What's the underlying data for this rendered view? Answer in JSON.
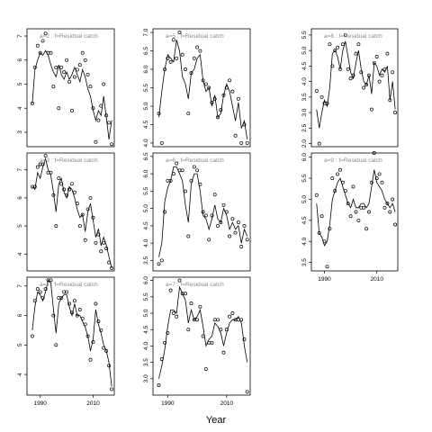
{
  "figure": {
    "xlabel": "Year"
  },
  "chart_data": [
    {
      "type": "line",
      "title": "a=2 : f=Residual catch",
      "xlim": [
        1985,
        2018
      ],
      "ylim": [
        2.4,
        7.3
      ],
      "yticks": [
        3,
        4,
        5,
        6,
        7
      ],
      "xticks": [],
      "x": [
        1987,
        1988,
        1989,
        1990,
        1991,
        1992,
        1993,
        1994,
        1995,
        1996,
        1997,
        1998,
        1999,
        2000,
        2001,
        2002,
        2003,
        2004,
        2005,
        2006,
        2007,
        2008,
        2009,
        2010,
        2011,
        2012,
        2013,
        2014,
        2015,
        2016,
        2017
      ],
      "series": [
        {
          "kind": "points",
          "values": [
            4.2,
            5.7,
            6.6,
            6.3,
            6.8,
            7.1,
            6.3,
            6.3,
            4.9,
            5.7,
            4.0,
            5.7,
            5.5,
            6.0,
            5.1,
            3.9,
            5.3,
            5.6,
            5.8,
            6.3,
            6.0,
            5.4,
            4.9,
            4.0,
            2.6,
            3.5,
            4.1,
            5.0,
            3.7,
            3.4,
            2.5
          ]
        },
        {
          "kind": "line",
          "values": [
            4.2,
            5.6,
            6.0,
            6.3,
            6.2,
            6.4,
            6.2,
            5.8,
            5.5,
            5.3,
            5.8,
            5.4,
            5.2,
            5.5,
            5.2,
            5.4,
            5.7,
            5.4,
            5.1,
            5.6,
            5.3,
            4.8,
            4.5,
            3.9,
            3.5,
            3.9,
            3.7,
            4.5,
            3.6,
            2.7,
            3.5
          ]
        }
      ]
    },
    {
      "type": "line",
      "title": "a=5 : f=Residual catch",
      "xlim": [
        1985,
        2018
      ],
      "ylim": [
        3.9,
        7.1
      ],
      "yticks": [
        4.0,
        4.5,
        5.0,
        5.5,
        6.0,
        6.5,
        7.0
      ],
      "xticks": [],
      "x": [
        1987,
        1988,
        1989,
        1990,
        1991,
        1992,
        1993,
        1994,
        1995,
        1996,
        1997,
        1998,
        1999,
        2000,
        2001,
        2002,
        2003,
        2004,
        2005,
        2006,
        2007,
        2008,
        2009,
        2010,
        2011,
        2012,
        2013,
        2014,
        2015,
        2016,
        2017
      ],
      "series": [
        {
          "kind": "points",
          "values": [
            4.8,
            4.0,
            6.0,
            6.3,
            6.2,
            6.8,
            6.3,
            7.0,
            6.4,
            6.0,
            4.8,
            5.9,
            6.3,
            6.6,
            6.5,
            5.7,
            5.6,
            5.5,
            5.1,
            5.2,
            4.7,
            4.9,
            5.3,
            5.5,
            5.7,
            5.4,
            4.2,
            5.2,
            4.0,
            4.5,
            4.0
          ]
        },
        {
          "kind": "line",
          "values": [
            4.7,
            5.4,
            6.0,
            6.4,
            6.3,
            6.2,
            6.8,
            6.5,
            5.8,
            5.6,
            5.2,
            5.9,
            6.0,
            6.3,
            6.4,
            5.7,
            5.4,
            5.5,
            5.0,
            5.3,
            4.7,
            4.8,
            5.3,
            5.6,
            5.4,
            5.0,
            4.6,
            5.1,
            4.4,
            4.6,
            4.1
          ]
        }
      ]
    },
    {
      "type": "line",
      "title": "a=8 : f=Residual catch",
      "xlim": [
        1985,
        2018
      ],
      "ylim": [
        1.9,
        5.7
      ],
      "yticks": [
        2.0,
        2.5,
        3.0,
        3.5,
        4.0,
        4.5,
        5.0,
        5.5
      ],
      "xticks": [],
      "x": [
        1987,
        1988,
        1989,
        1990,
        1991,
        1992,
        1993,
        1994,
        1995,
        1996,
        1997,
        1998,
        1999,
        2000,
        2001,
        2002,
        2003,
        2004,
        2005,
        2006,
        2007,
        2008,
        2009,
        2010,
        2011,
        2012,
        2013,
        2014,
        2015,
        2016,
        2017
      ],
      "series": [
        {
          "kind": "points",
          "values": [
            3.7,
            2.0,
            3.5,
            3.3,
            3.3,
            5.2,
            4.5,
            5.0,
            5.1,
            4.4,
            5.2,
            5.5,
            4.4,
            4.1,
            4.2,
            4.9,
            5.2,
            4.3,
            3.8,
            3.9,
            4.2,
            3.1,
            4.6,
            4.8,
            4.0,
            4.2,
            4.4,
            4.9,
            3.4,
            4.3,
            3.0
          ]
        },
        {
          "kind": "line",
          "values": [
            3.1,
            2.5,
            3.0,
            3.4,
            3.2,
            3.8,
            4.9,
            5.0,
            4.8,
            4.4,
            5.0,
            5.3,
            4.8,
            4.3,
            4.1,
            4.6,
            5.0,
            4.4,
            4.0,
            3.9,
            4.2,
            3.6,
            4.6,
            4.5,
            4.2,
            4.4,
            4.3,
            4.5,
            3.4,
            4.0,
            3.1
          ]
        }
      ]
    },
    {
      "type": "line",
      "title": "a=3 : f=Residual catch",
      "xlim": [
        1985,
        2018
      ],
      "ylim": [
        3.4,
        7.6
      ],
      "yticks": [
        4,
        5,
        6,
        7
      ],
      "xticks": [],
      "x": [
        1987,
        1988,
        1989,
        1990,
        1991,
        1992,
        1993,
        1994,
        1995,
        1996,
        1997,
        1998,
        1999,
        2000,
        2001,
        2002,
        2003,
        2004,
        2005,
        2006,
        2007,
        2008,
        2009,
        2010,
        2011,
        2012,
        2013,
        2014,
        2015,
        2016,
        2017
      ],
      "series": [
        {
          "kind": "points",
          "values": [
            6.4,
            6.4,
            7.1,
            7.2,
            7.2,
            7.5,
            6.9,
            6.9,
            6.1,
            5.0,
            6.7,
            6.5,
            6.3,
            6.1,
            6.3,
            6.5,
            6.2,
            5.8,
            5.0,
            5.4,
            4.5,
            5.6,
            6.0,
            5.3,
            4.4,
            4.7,
            4.1,
            4.4,
            4.2,
            3.7,
            3.5
          ]
        },
        {
          "kind": "line",
          "values": [
            6.4,
            6.3,
            6.9,
            6.7,
            7.1,
            7.4,
            7.0,
            6.8,
            6.2,
            5.5,
            6.5,
            6.7,
            6.2,
            6.0,
            6.4,
            6.3,
            6.0,
            5.6,
            5.3,
            5.4,
            4.8,
            5.5,
            5.8,
            5.2,
            4.6,
            4.9,
            4.3,
            4.6,
            4.3,
            3.9,
            3.5
          ]
        }
      ]
    },
    {
      "type": "line",
      "title": "a=6 : f=Residual catch",
      "xlim": [
        1985,
        2018
      ],
      "ylim": [
        3.2,
        6.6
      ],
      "yticks": [
        3.5,
        4.0,
        4.5,
        5.0,
        5.5,
        6.0,
        6.5
      ],
      "xticks": [],
      "x": [
        1987,
        1988,
        1989,
        1990,
        1991,
        1992,
        1993,
        1994,
        1995,
        1996,
        1997,
        1998,
        1999,
        2000,
        2001,
        2002,
        2003,
        2004,
        2005,
        2006,
        2007,
        2008,
        2009,
        2010,
        2011,
        2012,
        2013,
        2014,
        2015,
        2016,
        2017
      ],
      "series": [
        {
          "kind": "points",
          "values": [
            3.4,
            3.5,
            4.9,
            5.8,
            5.8,
            6.0,
            6.3,
            6.1,
            6.1,
            5.5,
            4.2,
            5.8,
            6.2,
            6.1,
            5.7,
            4.9,
            4.8,
            4.1,
            4.8,
            5.4,
            4.5,
            4.6,
            5.1,
            4.9,
            4.2,
            4.7,
            4.3,
            4.6,
            3.9,
            4.5,
            4.1
          ]
        },
        {
          "kind": "line",
          "values": [
            3.6,
            4.0,
            5.2,
            5.6,
            5.8,
            6.2,
            6.2,
            6.0,
            5.8,
            5.1,
            4.6,
            5.7,
            6.0,
            6.0,
            5.5,
            4.8,
            4.7,
            4.4,
            4.7,
            5.1,
            4.7,
            4.6,
            5.0,
            4.8,
            4.4,
            4.6,
            4.4,
            4.5,
            4.0,
            4.4,
            4.2
          ]
        }
      ]
    },
    {
      "type": "line",
      "title": "a=9 : f=Residual catch",
      "xlim": [
        1985,
        2018
      ],
      "ylim": [
        3.3,
        6.1
      ],
      "yticks": [
        3.5,
        4.0,
        4.5,
        5.0,
        5.5,
        6.0
      ],
      "xticks": [
        1990,
        2010
      ],
      "x": [
        1987,
        1988,
        1989,
        1990,
        1991,
        1992,
        1993,
        1994,
        1995,
        1996,
        1997,
        1998,
        1999,
        2000,
        2001,
        2002,
        2003,
        2004,
        2005,
        2006,
        2007,
        2008,
        2009,
        2010,
        2011,
        2012,
        2013,
        2014,
        2015,
        2016,
        2017
      ],
      "series": [
        {
          "kind": "points",
          "values": [
            5.1,
            4.2,
            4.6,
            4.0,
            3.4,
            4.3,
            5.5,
            5.2,
            5.6,
            5.7,
            5.4,
            5.2,
            4.9,
            4.6,
            5.3,
            4.7,
            4.5,
            4.8,
            4.8,
            4.3,
            4.7,
            5.4,
            6.1,
            5.5,
            5.6,
            5.4,
            4.8,
            4.9,
            4.7,
            5.0,
            4.4
          ]
        },
        {
          "kind": "line",
          "values": [
            4.9,
            4.2,
            4.1,
            3.9,
            4.0,
            4.4,
            5.0,
            5.2,
            5.4,
            5.5,
            5.3,
            5.1,
            4.9,
            4.8,
            5.0,
            4.8,
            4.8,
            4.9,
            4.9,
            4.8,
            4.9,
            5.3,
            5.7,
            5.4,
            5.3,
            5.2,
            5.0,
            4.9,
            4.8,
            4.9,
            4.7
          ]
        }
      ]
    },
    {
      "type": "line",
      "title": "a=4 : f=Residual catch",
      "xlim": [
        1985,
        2018
      ],
      "ylim": [
        3.3,
        7.3
      ],
      "yticks": [
        4,
        5,
        6,
        7
      ],
      "xticks": [
        1990,
        2010
      ],
      "x": [
        1987,
        1988,
        1989,
        1990,
        1991,
        1992,
        1993,
        1994,
        1995,
        1996,
        1997,
        1998,
        1999,
        2000,
        2001,
        2002,
        2003,
        2004,
        2005,
        2006,
        2007,
        2008,
        2009,
        2010,
        2011,
        2012,
        2013,
        2014,
        2015,
        2016,
        2017
      ],
      "series": [
        {
          "kind": "points",
          "values": [
            5.3,
            6.5,
            6.9,
            6.8,
            6.6,
            6.9,
            7.2,
            7.2,
            6.0,
            5.0,
            6.6,
            6.6,
            6.8,
            6.8,
            6.4,
            6.1,
            6.5,
            6.0,
            6.2,
            5.9,
            5.7,
            5.3,
            4.5,
            5.1,
            6.4,
            5.8,
            5.5,
            4.9,
            4.8,
            4.3,
            3.5
          ]
        },
        {
          "kind": "line",
          "values": [
            5.5,
            6.3,
            6.8,
            6.7,
            6.5,
            6.8,
            7.2,
            7.1,
            6.2,
            5.4,
            6.4,
            6.6,
            6.7,
            6.7,
            6.3,
            6.0,
            6.4,
            6.0,
            6.0,
            5.8,
            5.6,
            5.3,
            4.8,
            5.2,
            6.2,
            5.7,
            5.4,
            5.0,
            4.8,
            4.4,
            3.6
          ]
        }
      ]
    },
    {
      "type": "line",
      "title": "a=7 : f=Residual catch",
      "xlim": [
        1985,
        2018
      ],
      "ylim": [
        2.5,
        6.1
      ],
      "yticks": [
        3.0,
        3.5,
        4.0,
        4.5,
        5.0,
        5.5,
        6.0
      ],
      "xticks": [
        1990,
        2010
      ],
      "x": [
        1987,
        1988,
        1989,
        1990,
        1991,
        1992,
        1993,
        1994,
        1995,
        1996,
        1997,
        1998,
        1999,
        2000,
        2001,
        2002,
        2003,
        2004,
        2005,
        2006,
        2007,
        2008,
        2009,
        2010,
        2011,
        2012,
        2013,
        2014,
        2015,
        2016,
        2017
      ],
      "series": [
        {
          "kind": "points",
          "values": [
            2.8,
            3.6,
            4.1,
            4.4,
            5.7,
            5.0,
            4.9,
            6.0,
            5.6,
            5.6,
            4.5,
            5.3,
            4.8,
            4.8,
            5.2,
            4.3,
            3.3,
            4.1,
            4.1,
            4.8,
            4.8,
            4.5,
            3.8,
            4.5,
            4.9,
            5.0,
            4.8,
            4.8,
            4.8,
            4.2,
            2.6
          ]
        },
        {
          "kind": "line",
          "values": [
            3.0,
            3.4,
            3.9,
            4.6,
            5.1,
            5.1,
            5.0,
            5.8,
            5.6,
            5.4,
            4.7,
            5.1,
            4.8,
            4.9,
            5.1,
            4.6,
            4.0,
            4.2,
            4.3,
            4.7,
            4.6,
            4.4,
            4.0,
            4.4,
            4.7,
            4.8,
            4.8,
            4.9,
            4.7,
            4.0,
            3.5
          ]
        }
      ]
    }
  ]
}
